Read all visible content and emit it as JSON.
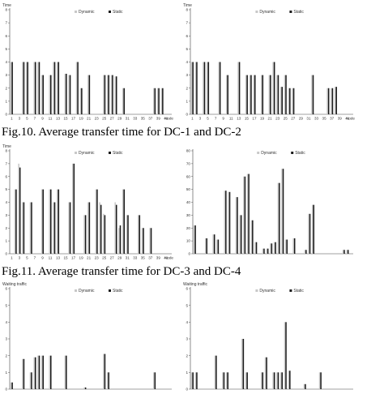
{
  "captions": [
    "Fig.10. Average transfer time for DC-1 and DC-2",
    "Fig.11. Average transfer time for DC-3 and DC-4"
  ],
  "legend": {
    "dynamic": "Dynamic",
    "static": "Static"
  },
  "colors": {
    "dynamic": "#c8c8c8",
    "static": "#1a1a1a"
  },
  "chart_data": [
    {
      "type": "bar",
      "ylabel": "Time",
      "xlabel": "Node",
      "ylim": [
        0,
        8
      ],
      "yticks": [
        0,
        1,
        2,
        3,
        4,
        5,
        6,
        7,
        8
      ],
      "xtick_count": 21,
      "n": 42,
      "series": [
        {
          "name": "Dynamic",
          "values": [
            4,
            0,
            0,
            4,
            4,
            0,
            4,
            4,
            3,
            0,
            3,
            4,
            4,
            0,
            3.1,
            3,
            0,
            4,
            2,
            0,
            3,
            0,
            0,
            0,
            3,
            3,
            3,
            2.9,
            0,
            2,
            0,
            0,
            0,
            0,
            0,
            0,
            0,
            2,
            2,
            2,
            0,
            0
          ]
        },
        {
          "name": "Static",
          "values": [
            4,
            0,
            0,
            4,
            4,
            0,
            4,
            4,
            3,
            0,
            3,
            4,
            4,
            0,
            3.1,
            3,
            0,
            4,
            2,
            0,
            3,
            0,
            0,
            0,
            3,
            3,
            3,
            2.9,
            0,
            2,
            0,
            0,
            0,
            0,
            0,
            0,
            0,
            2,
            2,
            2,
            0,
            0
          ]
        }
      ]
    },
    {
      "type": "bar",
      "ylabel": "Time",
      "xlabel": "Node",
      "ylim": [
        0,
        8
      ],
      "yticks": [
        0,
        1,
        2,
        3,
        4,
        5,
        6,
        7,
        8
      ],
      "xtick_count": 21,
      "n": 42,
      "series": [
        {
          "name": "Dynamic",
          "values": [
            4,
            4,
            0,
            4,
            4,
            0,
            0,
            4,
            0,
            3,
            0,
            0,
            4,
            0,
            3,
            3,
            3,
            0,
            3,
            0,
            3,
            4,
            3,
            2.1,
            3,
            2,
            2,
            0,
            0,
            0,
            0,
            3,
            0,
            0,
            0,
            2,
            2,
            2.1,
            0,
            0,
            0,
            0
          ]
        },
        {
          "name": "Static",
          "values": [
            4,
            4,
            0,
            4,
            4,
            0,
            0,
            4,
            0,
            3,
            0,
            0,
            4,
            0,
            3,
            3,
            3,
            0,
            3,
            0,
            3,
            4,
            3,
            2.1,
            3,
            2,
            2,
            0,
            0,
            0,
            0,
            3,
            0,
            0,
            0,
            2,
            2,
            2.1,
            0,
            0,
            0,
            0
          ]
        }
      ]
    },
    {
      "type": "bar",
      "ylabel": "Time",
      "xlabel": "Node",
      "ylim": [
        0,
        8
      ],
      "yticks": [
        0,
        1,
        2,
        3,
        4,
        5,
        6,
        7,
        8
      ],
      "xtick_count": 21,
      "n": 42,
      "series": [
        {
          "name": "Dynamic",
          "values": [
            0,
            5,
            7,
            4,
            0,
            4,
            0,
            0,
            5,
            0,
            5,
            4,
            5,
            0,
            0,
            4,
            7,
            0,
            0,
            3,
            4,
            0,
            5,
            4,
            3.1,
            0,
            0,
            4,
            2,
            5,
            3,
            0,
            0,
            3,
            2,
            0,
            2,
            0,
            0,
            0,
            0,
            0
          ]
        },
        {
          "name": "Static",
          "values": [
            0,
            5,
            6.7,
            4,
            0,
            4,
            0,
            0,
            5,
            0,
            5,
            4,
            5,
            0,
            0,
            4,
            7,
            0,
            0,
            3,
            4,
            0,
            5,
            3.8,
            3,
            0,
            0,
            3.8,
            2.2,
            5,
            3,
            0,
            0,
            3,
            2,
            0,
            2,
            0,
            0,
            0,
            0,
            0
          ]
        }
      ]
    },
    {
      "type": "bar",
      "ylabel": "",
      "xlabel": "",
      "ylim": [
        0,
        80
      ],
      "yticks": [
        0,
        10,
        20,
        30,
        40,
        50,
        60,
        70,
        80
      ],
      "xtick_count": 0,
      "n": 42,
      "series": [
        {
          "name": "Dynamic",
          "values": [
            22,
            0,
            0,
            12,
            0,
            15,
            11,
            0,
            49,
            48,
            0,
            44,
            30,
            60,
            62,
            26,
            9,
            0,
            4,
            4,
            8,
            9,
            55,
            66,
            11,
            0,
            12,
            0,
            0,
            3,
            31,
            38,
            0,
            0,
            0,
            0,
            0,
            0,
            0,
            3,
            3,
            0
          ]
        },
        {
          "name": "Static",
          "values": [
            22,
            0,
            0,
            12,
            0,
            15,
            11,
            0,
            49,
            48,
            0,
            44,
            30,
            60,
            62,
            26,
            9,
            0,
            4,
            4,
            8,
            9,
            55,
            66,
            11,
            0,
            12,
            0,
            0,
            3,
            31,
            38,
            0,
            0,
            0,
            0,
            0,
            0,
            0,
            3,
            3,
            0
          ]
        }
      ]
    },
    {
      "type": "bar",
      "ylabel": "Waiting traffic",
      "xlabel": "",
      "ylim": [
        0,
        6
      ],
      "yticks": [
        0,
        1,
        2,
        3,
        4,
        5,
        6
      ],
      "xtick_count": 0,
      "n": 42,
      "series": [
        {
          "name": "Dynamic",
          "values": [
            0.4,
            0,
            0,
            1.8,
            0,
            1,
            1.9,
            2,
            2,
            0,
            2,
            0,
            0,
            0,
            2,
            0,
            0,
            0,
            0,
            0.1,
            0,
            0,
            0,
            0,
            2.1,
            1,
            0,
            0,
            0,
            0,
            0,
            0,
            0,
            0,
            0,
            0,
            0,
            1,
            0,
            0,
            0,
            0
          ]
        },
        {
          "name": "Static",
          "values": [
            0.4,
            0,
            0,
            1.8,
            0,
            1,
            1.9,
            2,
            2,
            0,
            2,
            0,
            0,
            0,
            2,
            0,
            0,
            0,
            0,
            0.1,
            0,
            0,
            0,
            0,
            2.1,
            1,
            0,
            0,
            0,
            0,
            0,
            0,
            0,
            0,
            0,
            0,
            0,
            1,
            0,
            0,
            0,
            0
          ]
        }
      ]
    },
    {
      "type": "bar",
      "ylabel": "Waiting traffic",
      "xlabel": "",
      "ylim": [
        0,
        6
      ],
      "yticks": [
        0,
        1,
        2,
        3,
        4,
        5,
        6
      ],
      "xtick_count": 0,
      "n": 42,
      "series": [
        {
          "name": "Dynamic",
          "values": [
            1,
            1,
            0,
            0,
            0,
            0,
            2,
            0,
            1,
            1,
            0,
            0,
            0,
            3,
            1,
            0,
            0,
            0,
            1,
            1.9,
            0,
            1,
            1,
            1,
            4,
            1.1,
            0,
            0,
            0,
            0.3,
            0,
            0,
            0,
            1,
            0,
            0,
            0,
            0,
            0,
            0,
            0,
            0
          ]
        },
        {
          "name": "Static",
          "values": [
            1,
            1,
            0,
            0,
            0,
            0,
            2,
            0,
            1,
            1,
            0,
            0,
            0,
            3,
            1,
            0,
            0,
            0,
            1,
            1.9,
            0,
            1,
            1,
            1,
            4,
            1.1,
            0,
            0,
            0,
            0.3,
            0,
            0,
            0,
            1,
            0,
            0,
            0,
            0,
            0,
            0,
            0,
            0
          ]
        }
      ]
    }
  ]
}
